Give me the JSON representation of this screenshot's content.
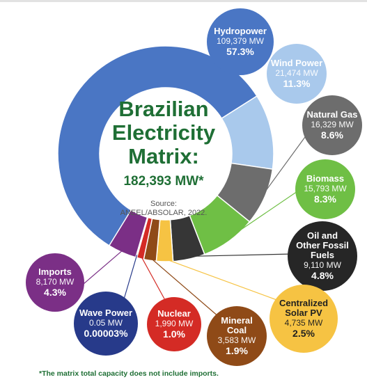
{
  "center": {
    "title_lines": [
      "Brazilian",
      "Electricity",
      "Matrix:"
    ],
    "total": "182,393 MW*",
    "source_label": "Source:",
    "source": "ANEEL/ABSOLAR, 2022."
  },
  "footnote": "*The matrix total capacity does not include imports.",
  "chart_data": {
    "type": "pie",
    "subtype": "donut",
    "title": "Brazilian Electricity Matrix: 182,393 MW*",
    "unit": "MW",
    "slices": [
      {
        "name": "Hydropower",
        "value": 109379,
        "value_label": "109,379 MW",
        "percent_label": "57.3%",
        "color": "#4a76c4"
      },
      {
        "name": "Wind Power",
        "value": 21474,
        "value_label": "21,474 MW",
        "percent_label": "11.3%",
        "color": "#a9c9ec"
      },
      {
        "name": "Natural Gas",
        "value": 16329,
        "value_label": "16,329 MW",
        "percent_label": "8.6%",
        "color": "#6d6d6d"
      },
      {
        "name": "Biomass",
        "value": 15793,
        "value_label": "15,793 MW",
        "percent_label": "8.3%",
        "color": "#6fbf45"
      },
      {
        "name": "Oil and Other Fossil Fuels",
        "value": 9110,
        "value_label": "9,110 MW",
        "percent_label": "4.8%",
        "color": "#363636"
      },
      {
        "name": "Centralized Solar PV",
        "value": 4735,
        "value_label": "4,735 MW",
        "percent_label": "2.5%",
        "color": "#f6c343"
      },
      {
        "name": "Mineral Coal",
        "value": 3583,
        "value_label": "3,583 MW",
        "percent_label": "1.9%",
        "color": "#8f4a17"
      },
      {
        "name": "Nuclear",
        "value": 1990,
        "value_label": "1,990 MW",
        "percent_label": "1.0%",
        "color": "#d42b25"
      },
      {
        "name": "Wave Power",
        "value": 0.05,
        "value_label": "0.05 MW",
        "percent_label": "0.00003%",
        "color": "#273a8a"
      },
      {
        "name": "Imports",
        "value": 8170,
        "value_label": "8,170 MW",
        "percent_label": "4.3%",
        "color": "#7b2f86"
      }
    ]
  }
}
